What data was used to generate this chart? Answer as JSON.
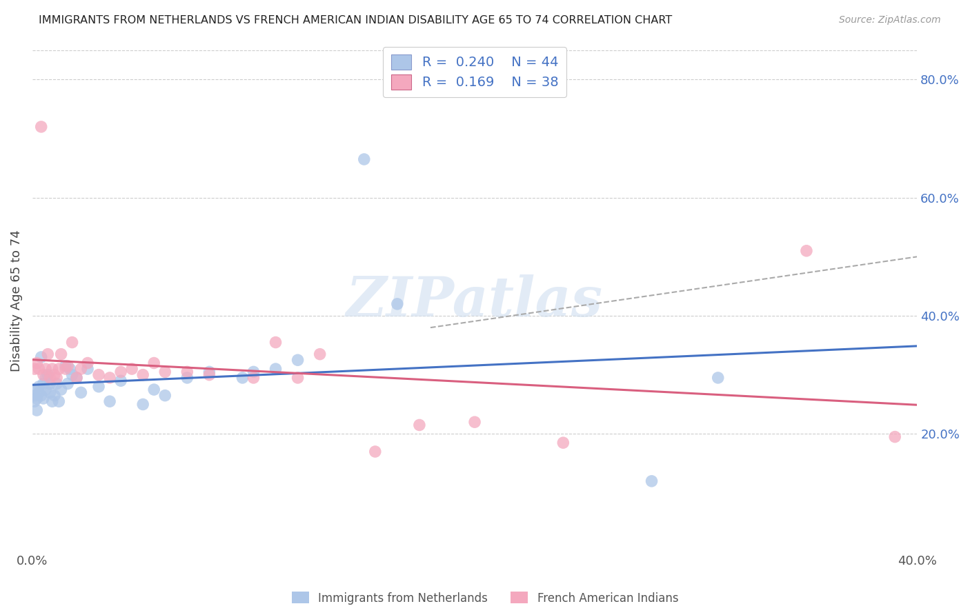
{
  "title": "IMMIGRANTS FROM NETHERLANDS VS FRENCH AMERICAN INDIAN DISABILITY AGE 65 TO 74 CORRELATION CHART",
  "source": "Source: ZipAtlas.com",
  "ylabel": "Disability Age 65 to 74",
  "xlim": [
    0.0,
    0.4
  ],
  "ylim": [
    0.0,
    0.85
  ],
  "x_ticks": [
    0.0,
    0.05,
    0.1,
    0.15,
    0.2,
    0.25,
    0.3,
    0.35,
    0.4
  ],
  "x_tick_labels": [
    "0.0%",
    "",
    "",
    "",
    "",
    "",
    "",
    "",
    "40.0%"
  ],
  "y_ticks_right": [
    0.2,
    0.4,
    0.6,
    0.8
  ],
  "y_tick_labels_right": [
    "20.0%",
    "40.0%",
    "60.0%",
    "80.0%"
  ],
  "blue_color": "#adc6e8",
  "pink_color": "#f4a8be",
  "blue_line_color": "#4472c4",
  "pink_line_color": "#d95f7f",
  "watermark": "ZIPatlas",
  "background_color": "#ffffff",
  "grid_color": "#cccccc",
  "blue_x": [
    0.001,
    0.001,
    0.001,
    0.002,
    0.002,
    0.003,
    0.003,
    0.004,
    0.004,
    0.005,
    0.005,
    0.006,
    0.006,
    0.007,
    0.008,
    0.008,
    0.009,
    0.01,
    0.011,
    0.012,
    0.013,
    0.015,
    0.016,
    0.017,
    0.018,
    0.02,
    0.022,
    0.025,
    0.03,
    0.035,
    0.04,
    0.05,
    0.055,
    0.06,
    0.07,
    0.08,
    0.095,
    0.1,
    0.11,
    0.12,
    0.15,
    0.165,
    0.28,
    0.31
  ],
  "blue_y": [
    0.255,
    0.265,
    0.275,
    0.26,
    0.24,
    0.27,
    0.28,
    0.265,
    0.33,
    0.26,
    0.285,
    0.275,
    0.295,
    0.3,
    0.27,
    0.285,
    0.255,
    0.265,
    0.285,
    0.255,
    0.275,
    0.315,
    0.285,
    0.31,
    0.3,
    0.295,
    0.27,
    0.31,
    0.28,
    0.255,
    0.29,
    0.25,
    0.275,
    0.265,
    0.295,
    0.305,
    0.295,
    0.305,
    0.31,
    0.325,
    0.665,
    0.42,
    0.12,
    0.295
  ],
  "pink_x": [
    0.001,
    0.002,
    0.003,
    0.004,
    0.005,
    0.006,
    0.007,
    0.008,
    0.009,
    0.01,
    0.011,
    0.012,
    0.013,
    0.015,
    0.016,
    0.018,
    0.02,
    0.022,
    0.025,
    0.03,
    0.035,
    0.04,
    0.045,
    0.05,
    0.055,
    0.06,
    0.07,
    0.08,
    0.1,
    0.11,
    0.12,
    0.13,
    0.155,
    0.175,
    0.2,
    0.24,
    0.35,
    0.39
  ],
  "pink_y": [
    0.31,
    0.32,
    0.31,
    0.72,
    0.3,
    0.31,
    0.335,
    0.295,
    0.31,
    0.3,
    0.295,
    0.31,
    0.335,
    0.31,
    0.315,
    0.355,
    0.295,
    0.31,
    0.32,
    0.3,
    0.295,
    0.305,
    0.31,
    0.3,
    0.32,
    0.305,
    0.305,
    0.3,
    0.295,
    0.355,
    0.295,
    0.335,
    0.17,
    0.215,
    0.22,
    0.185,
    0.51,
    0.195
  ]
}
